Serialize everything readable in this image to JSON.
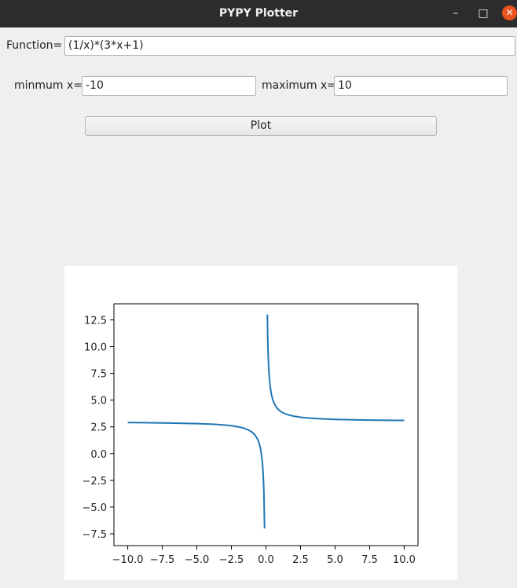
{
  "window": {
    "title": "PYPY Plotter",
    "minimize_glyph": "–",
    "maximize_glyph": "□",
    "close_glyph": "✕",
    "close_color": "#e95420"
  },
  "form": {
    "function_label": "Function=",
    "function_value": "(1/x)*(3*x+1)",
    "min_label": "minmum x=",
    "min_value": "-10",
    "max_label": "maximum x=",
    "max_value": "10",
    "plot_button": "Plot"
  },
  "chart_data": {
    "type": "line",
    "title": "",
    "xlabel": "",
    "ylabel": "",
    "xlim": [
      -11,
      11
    ],
    "ylim": [
      -8.6,
      14
    ],
    "grid": false,
    "line_color": "#1f77b4",
    "xticks": [
      -10,
      -7.5,
      -5,
      -2.5,
      0,
      2.5,
      5,
      7.5,
      10
    ],
    "xtick_labels": [
      "−10.0",
      "−7.5",
      "−5.0",
      "−2.5",
      "0.0",
      "2.5",
      "5.0",
      "7.5",
      "10.0"
    ],
    "yticks": [
      -7.5,
      -5,
      -2.5,
      0,
      2.5,
      5,
      7.5,
      10,
      12.5
    ],
    "ytick_labels": [
      "−7.5",
      "−5.0",
      "−2.5",
      "0.0",
      "2.5",
      "5.0",
      "7.5",
      "10.0",
      "12.5"
    ],
    "series": [
      {
        "x": [
          -10,
          -9,
          -8,
          -7,
          -6,
          -5,
          -4,
          -3.5,
          -3,
          -2.5,
          -2,
          -1.75,
          -1.5,
          -1.25,
          -1,
          -0.8,
          -0.6,
          -0.5,
          -0.4,
          -0.3,
          -0.25,
          -0.2,
          -0.15,
          -0.1
        ],
        "y": [
          2.9,
          2.889,
          2.875,
          2.857,
          2.833,
          2.8,
          2.75,
          2.714,
          2.667,
          2.6,
          2.5,
          2.429,
          2.333,
          2.2,
          2.0,
          1.75,
          1.333,
          1.0,
          0.5,
          -0.333,
          -1.0,
          -2.0,
          -3.667,
          -7.0
        ]
      },
      {
        "x": [
          0.1,
          0.125,
          0.15,
          0.2,
          0.25,
          0.3,
          0.4,
          0.5,
          0.6,
          0.8,
          1,
          1.25,
          1.5,
          2,
          2.5,
          3,
          4,
          5,
          6,
          7,
          8,
          9,
          10
        ],
        "y": [
          13.0,
          11.0,
          9.667,
          8.0,
          7.0,
          6.333,
          5.5,
          5.0,
          4.667,
          4.25,
          4.0,
          3.8,
          3.667,
          3.5,
          3.4,
          3.333,
          3.25,
          3.2,
          3.167,
          3.143,
          3.125,
          3.111,
          3.1
        ]
      }
    ]
  }
}
